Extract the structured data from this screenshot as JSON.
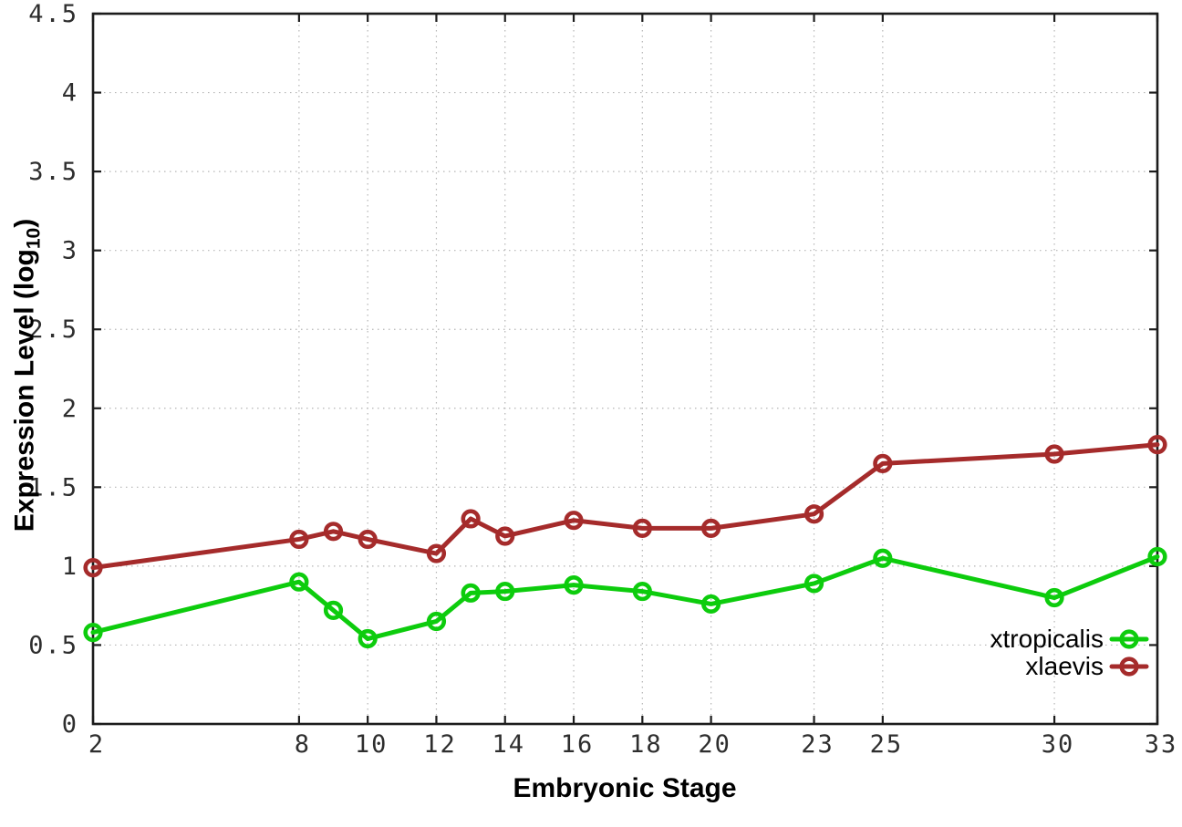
{
  "figure": {
    "xlabel": "Embryonic Stage",
    "ylabel_prefix": "Expression Level (log",
    "ylabel_sub": "10",
    "ylabel_suffix": ")",
    "background": "#ffffff",
    "axis_color": "#1c1c1c",
    "grid_color": "#b5b5b5",
    "tick_label_color": "#2e2e2e"
  },
  "chart_data": {
    "type": "line",
    "title": "",
    "xlabel": "Embryonic Stage",
    "ylabel": "Expression Level (log10)",
    "x": [
      2,
      8,
      9,
      10,
      12,
      13,
      14,
      16,
      18,
      20,
      23,
      25,
      30,
      33
    ],
    "xtick_labels": [
      2,
      8,
      10,
      12,
      14,
      16,
      18,
      20,
      23,
      25,
      30,
      33
    ],
    "yticks": [
      0,
      0.5,
      1,
      1.5,
      2,
      2.5,
      3,
      3.5,
      4,
      4.5
    ],
    "xlim": [
      2,
      33
    ],
    "ylim": [
      0,
      4.5
    ],
    "grid": "dotted",
    "legend_position": "inside-bottom-right",
    "series": [
      {
        "name": "xtropicalis",
        "color": "#0dcc0d",
        "values": [
          0.58,
          0.9,
          0.72,
          0.54,
          0.65,
          0.83,
          0.84,
          0.88,
          0.84,
          0.76,
          0.89,
          1.05,
          0.8,
          1.06
        ]
      },
      {
        "name": "xlaevis",
        "color": "#a52b2b",
        "values": [
          0.99,
          1.17,
          1.22,
          1.17,
          1.08,
          1.3,
          1.19,
          1.29,
          1.24,
          1.24,
          1.33,
          1.65,
          1.71,
          1.77
        ]
      }
    ]
  }
}
